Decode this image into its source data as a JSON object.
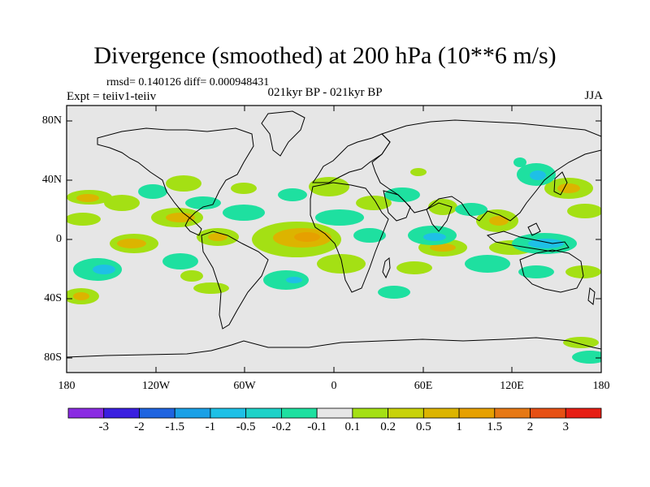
{
  "title": "Divergence (smoothed) at 200 hPa (10**6 m/s)",
  "stats": "rmsd= 0.140126 diff= 0.000948431",
  "experiment": "Expt = teiiv1-teiiv",
  "period": "021kyr BP - 021kyr BP",
  "season": "JJA",
  "map": {
    "projection": "cylindrical equidistant",
    "background_color": "#e6e6e6",
    "lat_range": [
      -90,
      90
    ],
    "lon_range": [
      -180,
      180
    ],
    "y_ticks": [
      "80N",
      "40N",
      "0",
      "40S",
      "80S"
    ],
    "x_ticks": [
      "180",
      "120W",
      "60W",
      "0",
      "60E",
      "120E",
      "180"
    ]
  },
  "colorbar": {
    "labels": [
      "-3",
      "-2",
      "-1.5",
      "-1",
      "-0.5",
      "-0.2",
      "-0.1",
      "0.1",
      "0.2",
      "0.5",
      "1",
      "1.5",
      "2",
      "3"
    ],
    "colors": [
      "#8a2be2",
      "#3a1fe0",
      "#1f64e0",
      "#1aa0e6",
      "#1ec0e6",
      "#1ed2c8",
      "#1ee0a0",
      "#e6e6e6",
      "#a4e014",
      "#c8d20a",
      "#dcb400",
      "#e6a000",
      "#e67814",
      "#e65014",
      "#e61e14"
    ]
  }
}
